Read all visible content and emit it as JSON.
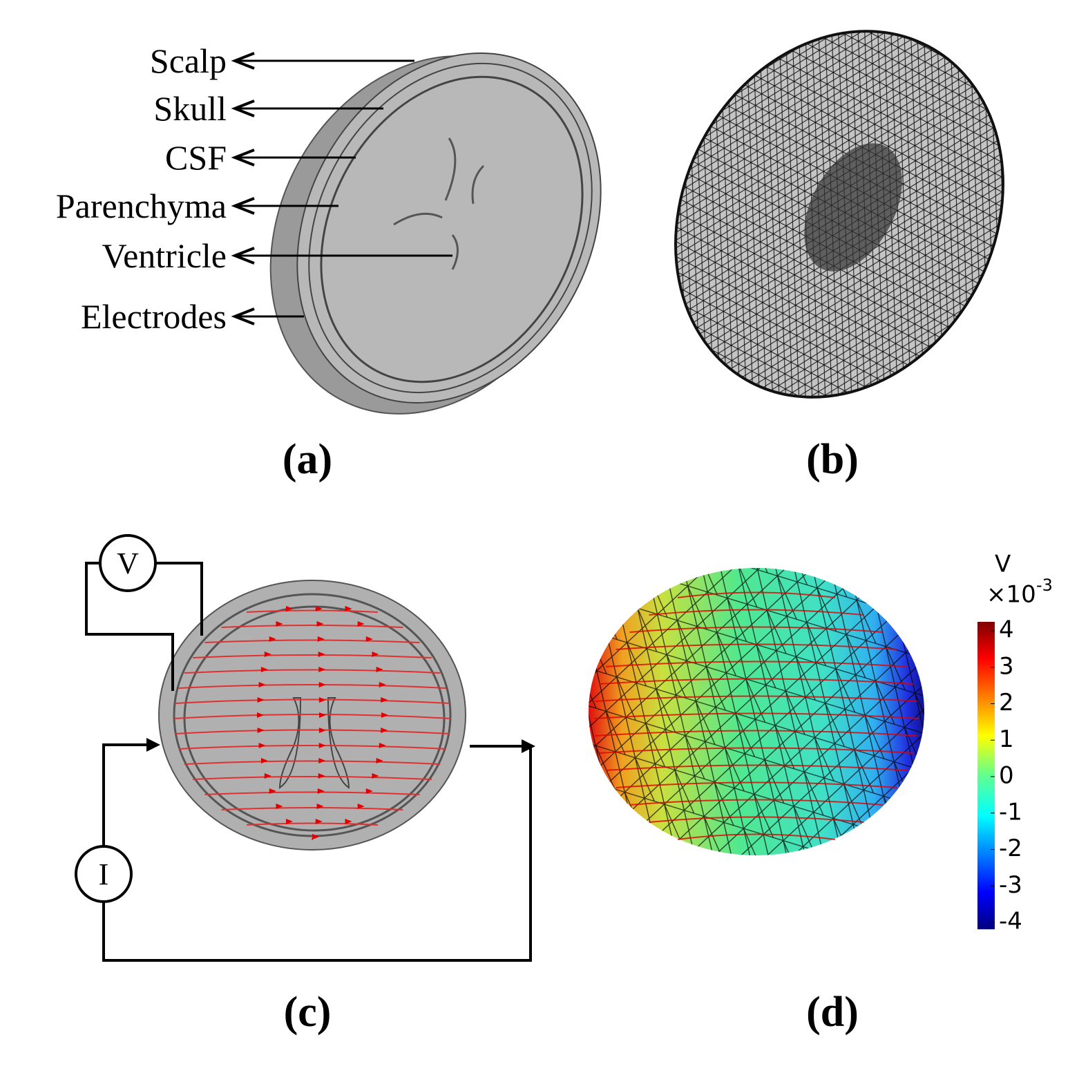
{
  "panel_a": {
    "labels": [
      "Scalp",
      "Skull",
      "CSF",
      "Parenchyma",
      "Ventricle",
      "Electrodes"
    ],
    "caption": "(a)"
  },
  "panel_b": {
    "caption": "(b)"
  },
  "panel_c": {
    "voltmeter": "V",
    "current_source": "I",
    "caption": "(c)"
  },
  "panel_d": {
    "caption": "(d)",
    "colorbar": {
      "unit": "V",
      "multiplier": "×10",
      "exponent": "-3",
      "ticks": [
        4,
        3,
        2,
        1,
        0,
        -1,
        -2,
        -3,
        -4
      ]
    }
  }
}
